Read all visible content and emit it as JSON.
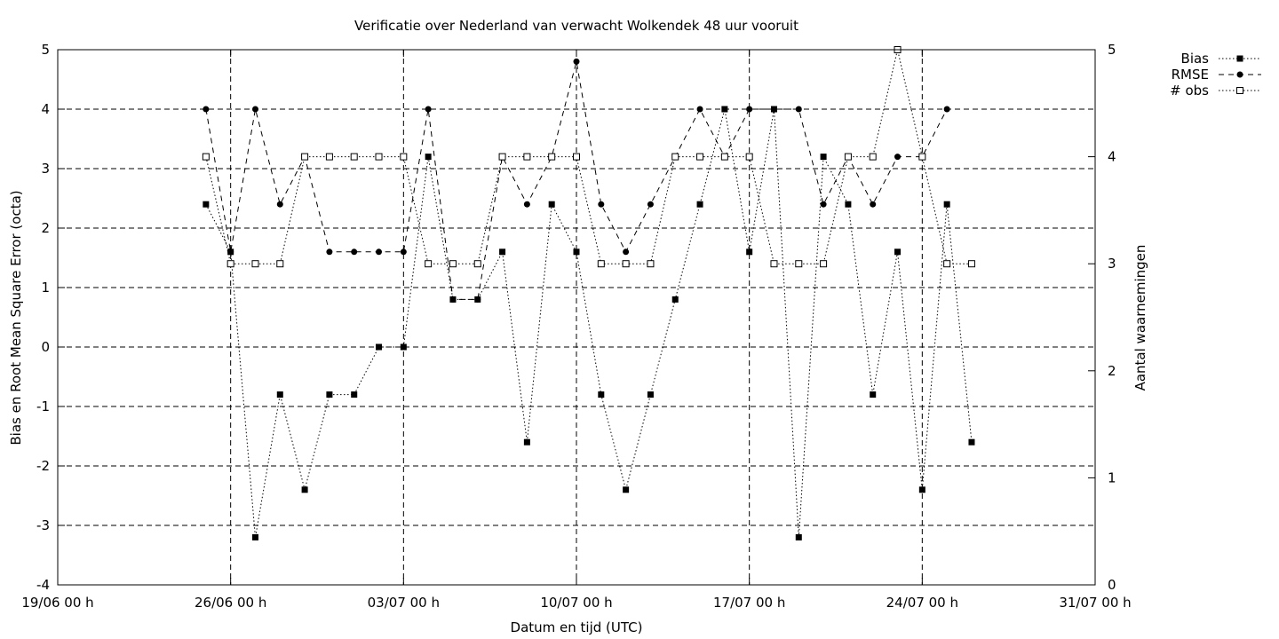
{
  "chart_data": {
    "type": "line",
    "title": "Verificatie over Nederland van verwacht Wolkendek 48 uur vooruit",
    "xlabel": "Datum en tijd (UTC)",
    "ylabel": "Bias en Root Mean Square Error (octa)",
    "y2label": "Aantal waarnemingen",
    "xlim": [
      "2023-06-19",
      "2023-07-31"
    ],
    "ylim": [
      -4,
      5
    ],
    "y2lim": [
      0,
      5
    ],
    "x_ticks": [
      {
        "date": "2023-06-19",
        "label": "19/06 00 h"
      },
      {
        "date": "2023-06-26",
        "label": "26/06 00 h"
      },
      {
        "date": "2023-07-03",
        "label": "03/07 00 h"
      },
      {
        "date": "2023-07-10",
        "label": "10/07 00 h"
      },
      {
        "date": "2023-07-17",
        "label": "17/07 00 h"
      },
      {
        "date": "2023-07-24",
        "label": "24/07 00 h"
      },
      {
        "date": "2023-07-31",
        "label": "31/07 00 h"
      }
    ],
    "y_ticks": [
      "-4",
      "-3",
      "-2",
      "-1",
      "0",
      "1",
      "2",
      "3",
      "4",
      "5"
    ],
    "y2_ticks": [
      "0",
      "1",
      "2",
      "3",
      "4",
      "5"
    ],
    "grid": true,
    "legend_position": "top-right",
    "dates": [
      "2023-06-25",
      "2023-06-26",
      "2023-06-27",
      "2023-06-28",
      "2023-06-29",
      "2023-06-30",
      "2023-07-01",
      "2023-07-02",
      "2023-07-03",
      "2023-07-04",
      "2023-07-05",
      "2023-07-06",
      "2023-07-07",
      "2023-07-08",
      "2023-07-09",
      "2023-07-10",
      "2023-07-11",
      "2023-07-12",
      "2023-07-13",
      "2023-07-14",
      "2023-07-15",
      "2023-07-16",
      "2023-07-17",
      "2023-07-18",
      "2023-07-19",
      "2023-07-20",
      "2023-07-21",
      "2023-07-22",
      "2023-07-23",
      "2023-07-24",
      "2023-07-25",
      "2023-07-26",
      "2023-07-27"
    ],
    "series": [
      {
        "name": "Bias",
        "axis": "y1",
        "marker": "filled-square",
        "line_style": "dotted",
        "values": [
          2.4,
          1.6,
          -3.2,
          -0.8,
          -2.4,
          -0.8,
          -0.8,
          0,
          0,
          3.2,
          0.8,
          0.8,
          1.6,
          -1.6,
          2.4,
          1.6,
          -0.8,
          -2.4,
          -0.8,
          0.8,
          2.4,
          4,
          1.6,
          4,
          -3.2,
          3.2,
          2.4,
          -0.8,
          1.6,
          -2.4,
          2.4,
          -1.6,
          null
        ]
      },
      {
        "name": "RMSE",
        "axis": "y1",
        "marker": "filled-circle",
        "line_style": "dashed",
        "values": [
          4,
          1.6,
          4,
          2.4,
          3.2,
          1.6,
          1.6,
          1.6,
          1.6,
          4,
          0.8,
          0.8,
          3.2,
          2.4,
          3.2,
          4.8,
          2.4,
          1.6,
          2.4,
          3.2,
          4,
          3.2,
          4,
          4,
          4,
          2.4,
          3.2,
          2.4,
          3.2,
          3.2,
          4,
          null,
          null
        ]
      },
      {
        "name": "# obs",
        "axis": "y2",
        "marker": "open-square",
        "line_style": "dotted",
        "values": [
          4,
          3,
          3,
          3,
          4,
          4,
          4,
          4,
          4,
          3,
          3,
          3,
          4,
          4,
          4,
          4,
          3,
          3,
          3,
          4,
          4,
          4,
          4,
          3,
          3,
          3,
          4,
          4,
          5,
          4,
          3,
          3,
          null
        ]
      }
    ]
  }
}
